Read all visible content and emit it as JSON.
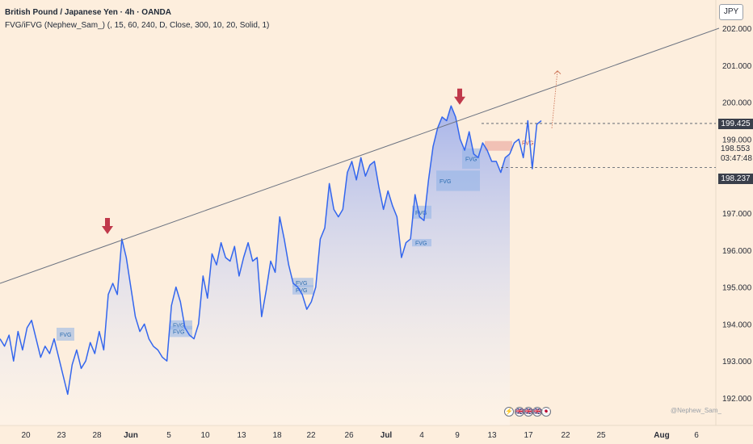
{
  "header": {
    "title": "British Pound / Japanese Yen · 4h · OANDA",
    "indicator": "FVG/iFVG (Nephew_Sam_) (, 15, 60, 240, D, Close, 300, 10, 20, Solid, 1)"
  },
  "currency_button": "JPY",
  "price_scale": {
    "current_price": "198.553",
    "countdown": "03:47:48",
    "upper_level": "199.425",
    "lower_level": "198.237"
  },
  "watermark": "@Nephew_Sam_",
  "event_icons": [
    "⚡",
    "🇬🇧",
    "🇬🇧",
    "🇬🇧",
    "🇯🇵"
  ],
  "fvg_label": "FVG",
  "colors": {
    "background": "#fdeedd",
    "line": "#3366ee",
    "fill_top": "#8aa1ee",
    "arrow": "#c0394b",
    "fvg_box": "#8fb3e6",
    "fvg_red": "#e89c94"
  },
  "chart_data": {
    "type": "area",
    "series": [
      {
        "values": [
          193.6,
          193.4,
          193.7,
          193.0,
          193.8,
          193.3,
          193.9,
          194.1,
          193.6,
          193.1,
          193.4,
          193.2,
          193.6,
          193.1,
          192.6,
          192.1,
          192.9,
          193.3,
          192.8,
          193.0,
          193.5,
          193.2,
          193.8,
          193.3,
          194.8,
          195.1,
          194.8,
          196.3,
          195.8,
          195.0,
          194.2,
          193.8,
          194.0,
          193.6,
          193.4,
          193.3,
          193.1,
          193.0,
          194.5,
          195.0,
          194.6,
          193.9,
          193.7,
          193.6,
          194.0,
          195.3,
          194.7,
          195.9,
          195.6,
          196.2,
          195.8,
          195.7,
          196.1,
          195.3,
          195.8,
          196.2,
          195.7,
          195.8,
          194.2,
          194.9,
          195.7,
          195.4,
          196.9,
          196.3,
          195.6,
          195.1,
          195.0,
          194.8,
          194.4,
          194.6,
          195.0,
          196.3,
          196.6,
          197.8,
          197.1,
          196.9,
          197.1,
          198.1,
          198.4,
          197.9,
          198.5,
          198.0,
          198.3,
          198.4,
          197.7,
          197.1,
          197.6,
          197.2,
          196.9,
          195.8,
          196.2,
          196.3,
          197.5,
          196.9,
          196.8,
          197.9,
          198.8,
          199.3,
          199.6,
          199.5,
          199.9,
          199.6,
          199.0,
          198.7,
          199.2,
          198.6,
          198.5,
          198.9,
          198.7,
          198.4,
          198.4,
          198.1,
          198.5,
          198.6,
          198.9,
          199.0,
          198.5,
          199.5,
          198.2,
          199.4,
          199.5
        ]
      }
    ],
    "x_labels": [
      "20",
      "23",
      "28",
      "Jun",
      "5",
      "10",
      "13",
      "18",
      "22",
      "26",
      "Jul",
      "4",
      "9",
      "13",
      "17",
      "22",
      "25",
      "Aug",
      "6"
    ],
    "y_ticks": [
      "202.000",
      "201.000",
      "200.000",
      "199.000",
      "198.000",
      "197.000",
      "196.000",
      "195.000",
      "194.000",
      "193.000",
      "192.000"
    ],
    "ylim": [
      191.7,
      202.3
    ],
    "trendline": {
      "start": 195.1,
      "end": 202.0
    },
    "projection_target": 200.85,
    "dashed_levels": [
      199.425,
      198.237
    ],
    "peak_markers": [
      196.3,
      199.8
    ],
    "fvg_zones": [
      {
        "top": 193.9,
        "bottom": 193.55
      },
      {
        "top": 194.1,
        "bottom": 193.85
      },
      {
        "top": 193.95,
        "bottom": 193.65
      },
      {
        "top": 195.25,
        "bottom": 195.0
      },
      {
        "top": 195.05,
        "bottom": 194.8
      },
      {
        "top": 196.3,
        "bottom": 196.1
      },
      {
        "top": 197.2,
        "bottom": 196.85
      },
      {
        "top": 198.15,
        "bottom": 197.6
      },
      {
        "top": 198.75,
        "bottom": 198.2
      }
    ]
  }
}
